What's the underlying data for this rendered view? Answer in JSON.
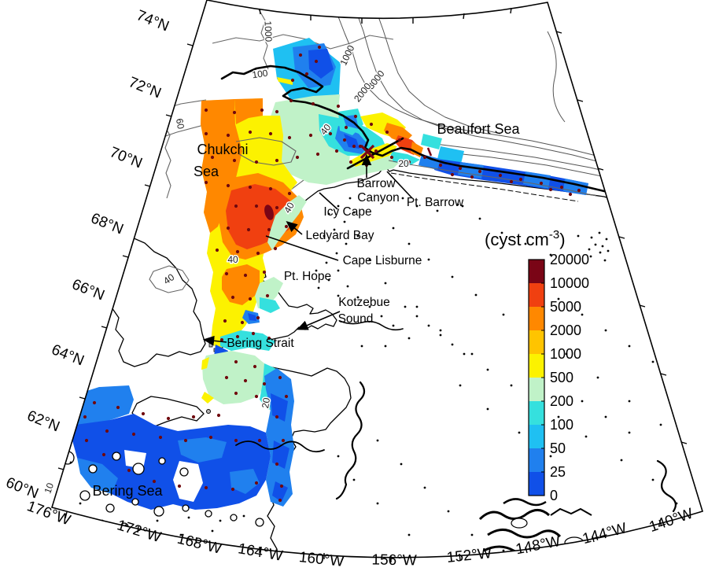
{
  "colorbar": {
    "title_pre": "(cyst cm",
    "title_sup": "-3",
    "title_post": ")",
    "tick_labels": [
      "20000",
      "10000",
      "5000",
      "2000",
      "1000",
      "500",
      "200",
      "100",
      "50",
      "25",
      "0"
    ],
    "segment_colors": [
      "#7A0516",
      "#F04010",
      "#FF8800",
      "#FFC400",
      "#FCF200",
      "#C0F2C8",
      "#35E0DE",
      "#1FC0F2",
      "#2080EE",
      "#1050E8"
    ]
  },
  "axes": {
    "lat_labels": [
      "74°N",
      "72°N",
      "70°N",
      "68°N",
      "66°N",
      "64°N",
      "62°N",
      "60°N"
    ],
    "lon_labels": [
      "176°W",
      "172°W",
      "168°W",
      "164°W",
      "160°W",
      "156°W",
      "152°W",
      "148°W",
      "144°W",
      "140°W"
    ]
  },
  "labels": {
    "sea": {
      "chukchi_1": "Chukchi",
      "chukchi_2": "Sea",
      "beaufort": "Beaufort Sea",
      "bering_sea": "Bering Sea"
    },
    "places": {
      "barrow_1": "Barrow",
      "barrow_2": "Canyon",
      "pt_barrow": "Pt. Barrow",
      "icy_cape": "Icy Cape",
      "ledyard_bay": "Ledyard Bay",
      "cape_lisburne": "Cape Lisburne",
      "pt_hope": "Pt. Hope",
      "kotzebue_1": "Kotzebue",
      "kotzebue_2": "Sound",
      "bering_strait": "Bering Strait"
    },
    "contours": {
      "c1000": "1000",
      "c100": "100",
      "c2000": "2000",
      "c3000": "3000",
      "c40": "40",
      "c60": "60",
      "c20": "20",
      "c10": "10"
    }
  },
  "map_colors": {
    "land": "#B5B5B5",
    "ocean": "#FFFFFF",
    "station_dot": "#70090E",
    "contour_gray": "#666666"
  },
  "stations": [
    [
      262,
      140
    ],
    [
      298,
      143
    ],
    [
      333,
      140
    ],
    [
      352,
      142
    ],
    [
      370,
      128
    ],
    [
      398,
      132
    ],
    [
      262,
      170
    ],
    [
      290,
      172
    ],
    [
      318,
      168
    ],
    [
      344,
      170
    ],
    [
      368,
      175
    ],
    [
      395,
      172
    ],
    [
      420,
      170
    ],
    [
      440,
      162
    ],
    [
      270,
      200
    ],
    [
      298,
      204
    ],
    [
      326,
      206
    ],
    [
      352,
      204
    ],
    [
      378,
      200
    ],
    [
      404,
      196
    ],
    [
      428,
      192
    ],
    [
      450,
      186
    ],
    [
      262,
      232
    ],
    [
      290,
      236
    ],
    [
      318,
      238
    ],
    [
      344,
      240
    ],
    [
      368,
      246
    ],
    [
      300,
      262
    ],
    [
      326,
      262
    ],
    [
      352,
      264
    ],
    [
      290,
      290
    ],
    [
      316,
      292
    ],
    [
      342,
      292
    ],
    [
      364,
      288
    ],
    [
      276,
      318
    ],
    [
      302,
      320
    ],
    [
      328,
      322
    ],
    [
      350,
      316
    ],
    [
      288,
      348
    ],
    [
      312,
      350
    ],
    [
      336,
      346
    ],
    [
      296,
      378
    ],
    [
      318,
      380
    ],
    [
      340,
      376
    ],
    [
      286,
      408
    ],
    [
      308,
      410
    ],
    [
      328,
      404
    ],
    [
      282,
      432
    ],
    [
      302,
      428
    ],
    [
      322,
      424
    ],
    [
      342,
      430
    ],
    [
      382,
      70
    ],
    [
      402,
      78
    ],
    [
      390,
      94
    ],
    [
      372,
      102
    ],
    [
      406,
      60
    ],
    [
      430,
      135
    ],
    [
      452,
      148
    ],
    [
      472,
      158
    ],
    [
      492,
      168
    ],
    [
      508,
      178
    ],
    [
      438,
      178
    ],
    [
      458,
      186
    ],
    [
      478,
      192
    ],
    [
      498,
      200
    ],
    [
      520,
      206
    ],
    [
      540,
      200
    ],
    [
      446,
      206
    ],
    [
      466,
      210
    ],
    [
      560,
      210
    ],
    [
      585,
      214
    ],
    [
      610,
      218
    ],
    [
      636,
      223
    ],
    [
      662,
      228
    ],
    [
      688,
      233
    ],
    [
      714,
      238
    ],
    [
      736,
      242
    ],
    [
      600,
      225
    ],
    [
      650,
      231
    ],
    [
      700,
      241
    ],
    [
      725,
      247
    ],
    [
      575,
      222
    ],
    [
      300,
      460
    ],
    [
      324,
      466
    ],
    [
      288,
      480
    ],
    [
      312,
      484
    ],
    [
      336,
      488
    ],
    [
      300,
      500
    ],
    [
      326,
      504
    ],
    [
      356,
      480
    ],
    [
      364,
      504
    ],
    [
      352,
      530
    ],
    [
      360,
      560
    ],
    [
      352,
      590
    ],
    [
      358,
      618
    ],
    [
      330,
      560
    ],
    [
      300,
      560
    ],
    [
      268,
      556
    ],
    [
      236,
      560
    ],
    [
      204,
      556
    ],
    [
      170,
      552
    ],
    [
      136,
      548
    ],
    [
      108,
      530
    ],
    [
      110,
      560
    ],
    [
      132,
      578
    ],
    [
      164,
      598
    ],
    [
      196,
      612
    ],
    [
      228,
      618
    ],
    [
      262,
      620
    ],
    [
      296,
      622
    ],
    [
      326,
      614
    ],
    [
      356,
      636
    ],
    [
      120,
      512
    ],
    [
      150,
      518
    ],
    [
      182,
      526
    ],
    [
      214,
      532
    ],
    [
      246,
      530
    ],
    [
      278,
      528
    ]
  ],
  "land_specks": [
    [
      512,
      252
    ],
    [
      588,
      262
    ],
    [
      530,
      262
    ],
    [
      556,
      268
    ],
    [
      582,
      260
    ],
    [
      610,
      278
    ],
    [
      638,
      296
    ],
    [
      668,
      310
    ],
    [
      700,
      324
    ],
    [
      735,
      300
    ],
    [
      752,
      302
    ],
    [
      762,
      296
    ],
    [
      757,
      311
    ],
    [
      766,
      313
    ],
    [
      749,
      317
    ],
    [
      771,
      304
    ],
    [
      773,
      319
    ],
    [
      763,
      321
    ],
    [
      751,
      326
    ],
    [
      769,
      331
    ],
    [
      500,
      290
    ],
    [
      520,
      310
    ],
    [
      545,
      330
    ],
    [
      575,
      352
    ],
    [
      605,
      375
    ],
    [
      640,
      400
    ],
    [
      680,
      425
    ],
    [
      720,
      450
    ],
    [
      760,
      480
    ],
    [
      800,
      510
    ],
    [
      840,
      540
    ],
    [
      600,
      450
    ],
    [
      560,
      420
    ],
    [
      530,
      390
    ],
    [
      490,
      360
    ],
    [
      470,
      330
    ],
    [
      455,
      300
    ],
    [
      585,
      490
    ],
    [
      620,
      520
    ],
    [
      660,
      550
    ],
    [
      700,
      580
    ],
    [
      745,
      555
    ],
    [
      790,
      585
    ],
    [
      830,
      610
    ],
    [
      860,
      640
    ],
    [
      480,
      560
    ],
    [
      510,
      590
    ],
    [
      540,
      620
    ],
    [
      570,
      650
    ],
    [
      600,
      680
    ],
    [
      640,
      700
    ],
    [
      520,
      680
    ],
    [
      480,
      640
    ],
    [
      450,
      610
    ],
    [
      430,
      580
    ],
    [
      88,
      505
    ],
    [
      80,
      556
    ],
    [
      86,
      562
    ],
    [
      76,
      512
    ],
    [
      90,
      588
    ],
    [
      102,
      640
    ],
    [
      96,
      655
    ],
    [
      130,
      662
    ],
    [
      160,
      668
    ],
    [
      200,
      662
    ],
    [
      240,
      658
    ],
    [
      280,
      662
    ],
    [
      310,
      656
    ],
    [
      270,
      675
    ],
    [
      230,
      680
    ],
    [
      190,
      683
    ],
    [
      150,
      680
    ],
    [
      115,
      676
    ],
    [
      445,
      252
    ],
    [
      430,
      262
    ],
    [
      418,
      272
    ],
    [
      450,
      270
    ],
    [
      438,
      282
    ],
    [
      425,
      292
    ],
    [
      412,
      300
    ],
    [
      440,
      310
    ],
    [
      428,
      322
    ],
    [
      415,
      334
    ],
    [
      402,
      344
    ],
    [
      430,
      344
    ],
    [
      418,
      356
    ],
    [
      405,
      366
    ],
    [
      442,
      364
    ],
    [
      430,
      376
    ],
    [
      455,
      378
    ],
    [
      470,
      390
    ],
    [
      485,
      402
    ],
    [
      500,
      414
    ],
    [
      515,
      390
    ],
    [
      530,
      402
    ],
    [
      545,
      414
    ],
    [
      560,
      426
    ],
    [
      575,
      438
    ],
    [
      590,
      450
    ],
    [
      520,
      430
    ],
    [
      490,
      440
    ],
    [
      460,
      440
    ],
    [
      620,
      470
    ],
    [
      650,
      490
    ],
    [
      680,
      510
    ],
    [
      710,
      530
    ],
    [
      740,
      510
    ],
    [
      770,
      530
    ],
    [
      800,
      550
    ],
    [
      680,
      360
    ],
    [
      710,
      380
    ],
    [
      740,
      400
    ],
    [
      770,
      420
    ],
    [
      800,
      440
    ],
    [
      830,
      460
    ],
    [
      860,
      480
    ],
    [
      880,
      500
    ]
  ]
}
